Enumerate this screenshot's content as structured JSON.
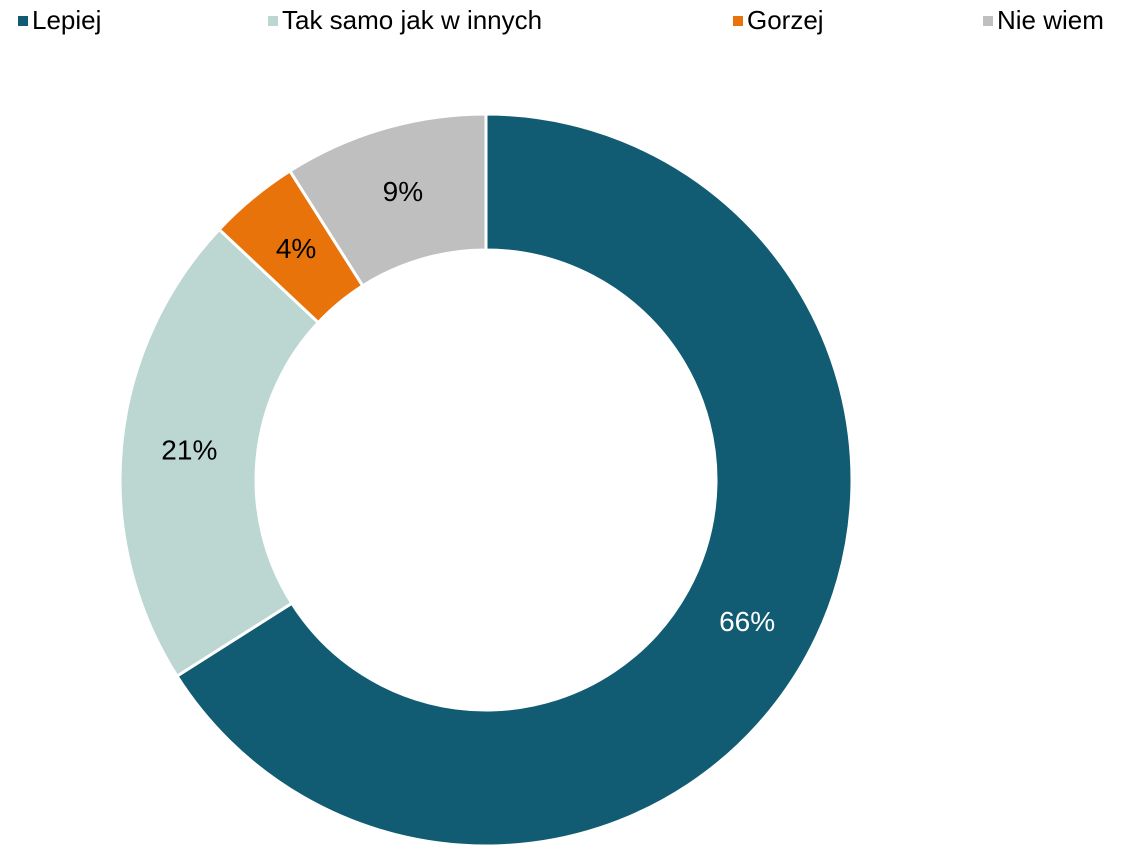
{
  "chart_data": {
    "type": "donut",
    "categories": [
      "Lepiej",
      "Tak samo jak w innych",
      "Gorzej",
      "Nie wiem"
    ],
    "values": [
      66,
      21,
      4,
      9
    ],
    "value_labels": [
      "66%",
      "21%",
      "4%",
      "9%"
    ],
    "colors": [
      "#115c72",
      "#bcd6d1",
      "#e8730a",
      "#bfbfbf"
    ],
    "legend": "top"
  }
}
